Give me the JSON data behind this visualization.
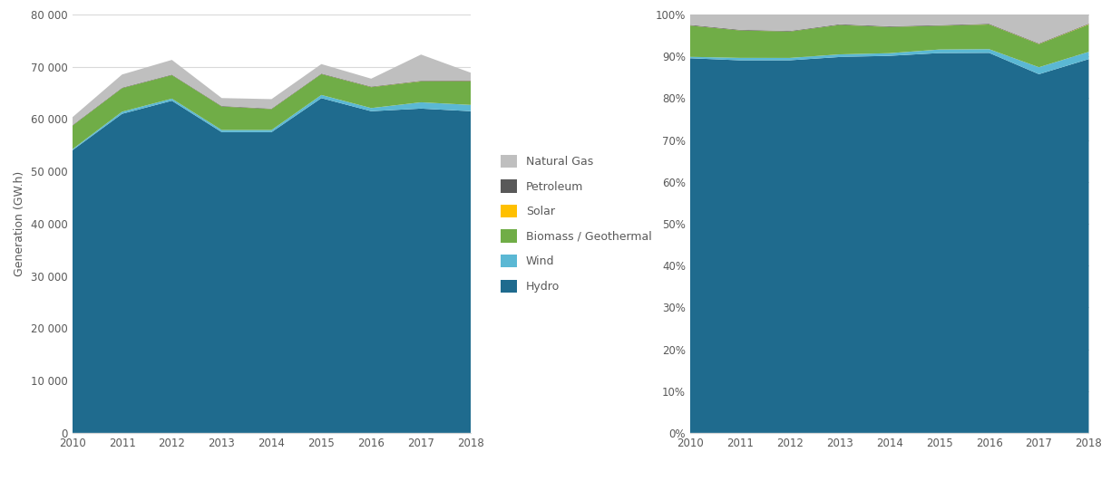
{
  "years": [
    2010,
    2011,
    2012,
    2013,
    2014,
    2015,
    2016,
    2017,
    2018
  ],
  "hydro": [
    54000,
    61000,
    63500,
    57500,
    57500,
    64000,
    61500,
    62000,
    61500
  ],
  "wind": [
    200,
    400,
    400,
    400,
    400,
    600,
    600,
    1200,
    1200
  ],
  "biomass": [
    4500,
    4500,
    4500,
    4500,
    4000,
    4000,
    4000,
    4000,
    4500
  ],
  "solar": [
    10,
    10,
    10,
    10,
    10,
    10,
    20,
    30,
    50
  ],
  "petroleum": [
    100,
    100,
    100,
    100,
    100,
    100,
    100,
    100,
    100
  ],
  "natural_gas": [
    1500,
    2500,
    2800,
    1500,
    1800,
    1800,
    1500,
    5000,
    1500
  ],
  "colors": {
    "hydro": "#1F6B8E",
    "wind": "#5BB8D4",
    "biomass": "#70AD47",
    "solar": "#FFC000",
    "petroleum": "#595959",
    "natural_gas": "#BFBFBF"
  },
  "legend_labels": [
    "Natural Gas",
    "Petroleum",
    "Solar",
    "Biomass / Geothermal",
    "Wind",
    "Hydro"
  ],
  "legend_keys_order": [
    "natural_gas",
    "petroleum",
    "solar",
    "biomass",
    "wind",
    "hydro"
  ],
  "ylabel": "Generation (GW.h)",
  "ylim_abs": [
    0,
    80000
  ],
  "yticks_abs": [
    0,
    10000,
    20000,
    30000,
    40000,
    50000,
    60000,
    70000,
    80000
  ],
  "ytick_labels_abs": [
    "0",
    "10 000",
    "20 000",
    "30 000",
    "40 000",
    "50 000",
    "60 000",
    "70 000",
    "80 000"
  ],
  "yticks_pct": [
    0,
    0.1,
    0.2,
    0.3,
    0.4,
    0.5,
    0.6,
    0.7,
    0.8,
    0.9,
    1.0
  ],
  "ytick_labels_pct": [
    "0%",
    "10%",
    "20%",
    "30%",
    "40%",
    "50%",
    "60%",
    "70%",
    "80%",
    "90%",
    "100%"
  ],
  "background_color": "#FFFFFF",
  "grid_color": "#D9D9D9",
  "tick_color": "#595959",
  "label_fontsize": 9,
  "tick_fontsize": 8.5,
  "fig_width": 12.25,
  "fig_height": 5.31
}
